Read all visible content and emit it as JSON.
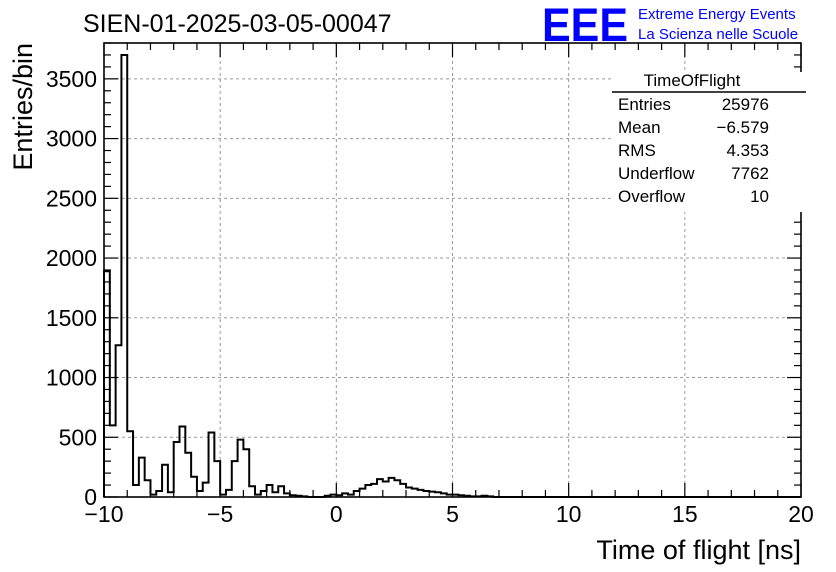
{
  "chart_data": {
    "type": "histogram",
    "title": "SIEN-01-2025-03-05-00047",
    "xlabel": "Time of flight [ns]",
    "ylabel": "Entries/bin",
    "xlim": [
      -10,
      20
    ],
    "ylim": [
      0,
      3800
    ],
    "bin_width": 0.25,
    "x_start": -10,
    "grid": true,
    "x_ticks": [
      -10,
      -5,
      0,
      5,
      10,
      15,
      20
    ],
    "x_tick_labels": [
      "−10",
      "−5",
      "0",
      "5",
      "10",
      "15",
      "20"
    ],
    "y_ticks": [
      0,
      500,
      1000,
      1500,
      2000,
      2500,
      3000,
      3500
    ],
    "y_tick_labels": [
      "0",
      "500",
      "1000",
      "1500",
      "2000",
      "2500",
      "3000",
      "3500"
    ],
    "values": [
      1890,
      600,
      1270,
      3700,
      550,
      100,
      330,
      140,
      20,
      50,
      270,
      40,
      460,
      590,
      370,
      170,
      50,
      120,
      540,
      300,
      20,
      60,
      300,
      480,
      400,
      90,
      20,
      50,
      100,
      40,
      90,
      30,
      15,
      10,
      5,
      0,
      0,
      0,
      10,
      20,
      15,
      30,
      20,
      50,
      70,
      100,
      110,
      150,
      130,
      160,
      140,
      110,
      80,
      70,
      60,
      50,
      45,
      40,
      30,
      20,
      20,
      15,
      10,
      5,
      5,
      10,
      5,
      0,
      0,
      0,
      0,
      0,
      0,
      0,
      0,
      0,
      0,
      0,
      0,
      0,
      0,
      0,
      0,
      0,
      0,
      0,
      0,
      0,
      0,
      0,
      0,
      0,
      0,
      0,
      0,
      0,
      0,
      0,
      0,
      0,
      0,
      0,
      0,
      0,
      0,
      0,
      0,
      0,
      0,
      0,
      0,
      0,
      0,
      0,
      0,
      0,
      0,
      0,
      0,
      0
    ],
    "stats_box": {
      "name": "TimeOfFlight",
      "rows": [
        {
          "label": "Entries",
          "value": "25976"
        },
        {
          "label": "Mean",
          "value": "−6.579"
        },
        {
          "label": "RMS",
          "value": "4.353"
        },
        {
          "label": "Underflow",
          "value": "7762"
        },
        {
          "label": "Overflow",
          "value": "10"
        }
      ]
    },
    "logo": {
      "text": "EEE",
      "line1": "Extreme Energy Events",
      "line2": "La Scienza nelle Scuole",
      "color": "#0000ff"
    },
    "line_color": "#000000",
    "grid_color": "#9a9a9a"
  }
}
